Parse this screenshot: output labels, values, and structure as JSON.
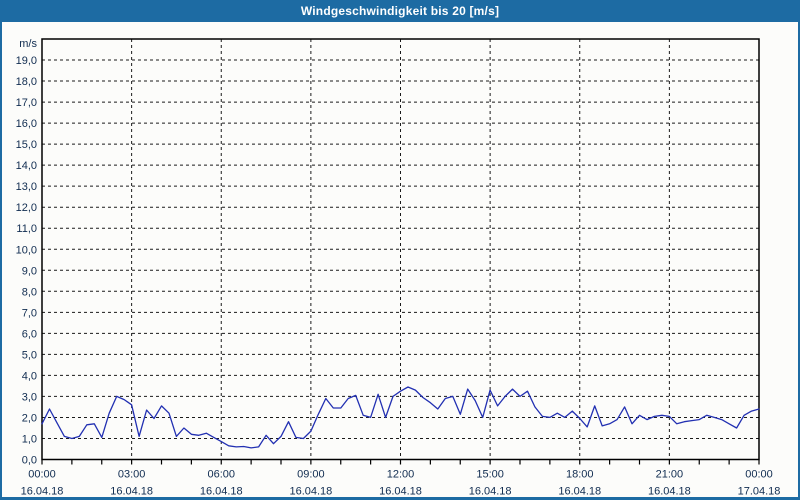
{
  "window": {
    "title": "Windgeschwindigkeit bis 20 [m/s]",
    "title_bar_color": "#1d6ba3",
    "border_color": "#1d6ba3",
    "background_color": "#fcfcfa"
  },
  "chart_data": {
    "type": "line",
    "title": "Windgeschwindigkeit bis 20 [m/s]",
    "ylabel": "m/s",
    "xlabel": "",
    "ylim": [
      0,
      20
    ],
    "y_tick_step": 1,
    "y_tick_labels": [
      "0,0",
      "1,0",
      "2,0",
      "3,0",
      "4,0",
      "5,0",
      "6,0",
      "7,0",
      "8,0",
      "9,0",
      "10,0",
      "11,0",
      "12,0",
      "13,0",
      "14,0",
      "15,0",
      "16,0",
      "17,0",
      "18,0",
      "19,0"
    ],
    "grid": "dashed",
    "legend": "none",
    "line_color": "#2230b2",
    "axis_color": "#000000",
    "label_color": "#102c50",
    "xlim_hours": [
      0,
      24
    ],
    "x_minor_tick_hours": 1,
    "x_major_ticks": [
      {
        "hour": 0,
        "time": "00:00",
        "date": "16.04.18"
      },
      {
        "hour": 3,
        "time": "03:00",
        "date": "16.04.18"
      },
      {
        "hour": 6,
        "time": "06:00",
        "date": "16.04.18"
      },
      {
        "hour": 9,
        "time": "09:00",
        "date": "16.04.18"
      },
      {
        "hour": 12,
        "time": "12:00",
        "date": "16.04.18"
      },
      {
        "hour": 15,
        "time": "15:00",
        "date": "16.04.18"
      },
      {
        "hour": 18,
        "time": "18:00",
        "date": "16.04.18"
      },
      {
        "hour": 21,
        "time": "21:00",
        "date": "16.04.18"
      },
      {
        "hour": 24,
        "time": "00:00",
        "date": "17.04.18"
      }
    ],
    "x_sample_step_hours": 0.25,
    "series": [
      {
        "name": "Windgeschwindigkeit [m/s]",
        "values": [
          1.7,
          2.4,
          1.75,
          1.1,
          1.0,
          1.1,
          1.65,
          1.7,
          1.05,
          2.2,
          3.0,
          2.85,
          2.6,
          1.1,
          2.35,
          1.95,
          2.55,
          2.2,
          1.1,
          1.5,
          1.2,
          1.15,
          1.25,
          1.05,
          0.85,
          0.65,
          0.6,
          0.62,
          0.55,
          0.6,
          1.15,
          0.75,
          1.1,
          1.8,
          1.05,
          1.0,
          1.35,
          2.15,
          2.9,
          2.45,
          2.45,
          2.9,
          3.05,
          2.1,
          2.0,
          3.1,
          2.0,
          3.0,
          3.25,
          3.45,
          3.3,
          2.95,
          2.7,
          2.4,
          2.9,
          3.0,
          2.15,
          3.35,
          2.8,
          2.0,
          3.3,
          2.55,
          3.0,
          3.35,
          3.0,
          3.25,
          2.5,
          2.05,
          2.0,
          2.2,
          2.0,
          2.3,
          1.95,
          1.55,
          2.55,
          1.6,
          1.7,
          1.9,
          2.5,
          1.7,
          2.1,
          1.9,
          2.05,
          2.1,
          2.05,
          1.7,
          1.8,
          1.85,
          1.9,
          2.1,
          2.0,
          1.9,
          1.7,
          1.5,
          2.1,
          2.3,
          2.4
        ]
      }
    ]
  }
}
